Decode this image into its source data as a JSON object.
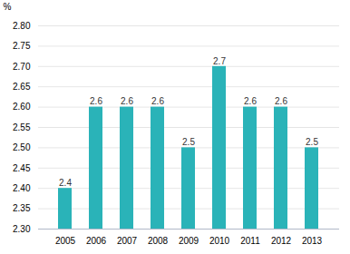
{
  "chart_data": {
    "type": "bar",
    "categories": [
      "2005",
      "2006",
      "2007",
      "2008",
      "2009",
      "2010",
      "2011",
      "2012",
      "2013"
    ],
    "values": [
      2.4,
      2.6,
      2.6,
      2.6,
      2.5,
      2.7,
      2.6,
      2.6,
      2.5
    ],
    "color": "#2ab3b8",
    "ylabel": "%",
    "ylim": [
      2.3,
      2.8
    ],
    "yticks": [
      {
        "value": 2.3,
        "label": "2.30"
      },
      {
        "value": 2.35,
        "label": "2.35"
      },
      {
        "value": 2.4,
        "label": "2.40"
      },
      {
        "value": 2.45,
        "label": "2.45"
      },
      {
        "value": 2.5,
        "label": "2.50"
      },
      {
        "value": 2.55,
        "label": "2.55"
      },
      {
        "value": 2.6,
        "label": "2.60"
      },
      {
        "value": 2.65,
        "label": "2.65"
      },
      {
        "value": 2.7,
        "label": "2.70"
      },
      {
        "value": 2.75,
        "label": "2.75"
      },
      {
        "value": 2.8,
        "label": "2.80"
      }
    ],
    "grid": true,
    "data_labels": true
  }
}
